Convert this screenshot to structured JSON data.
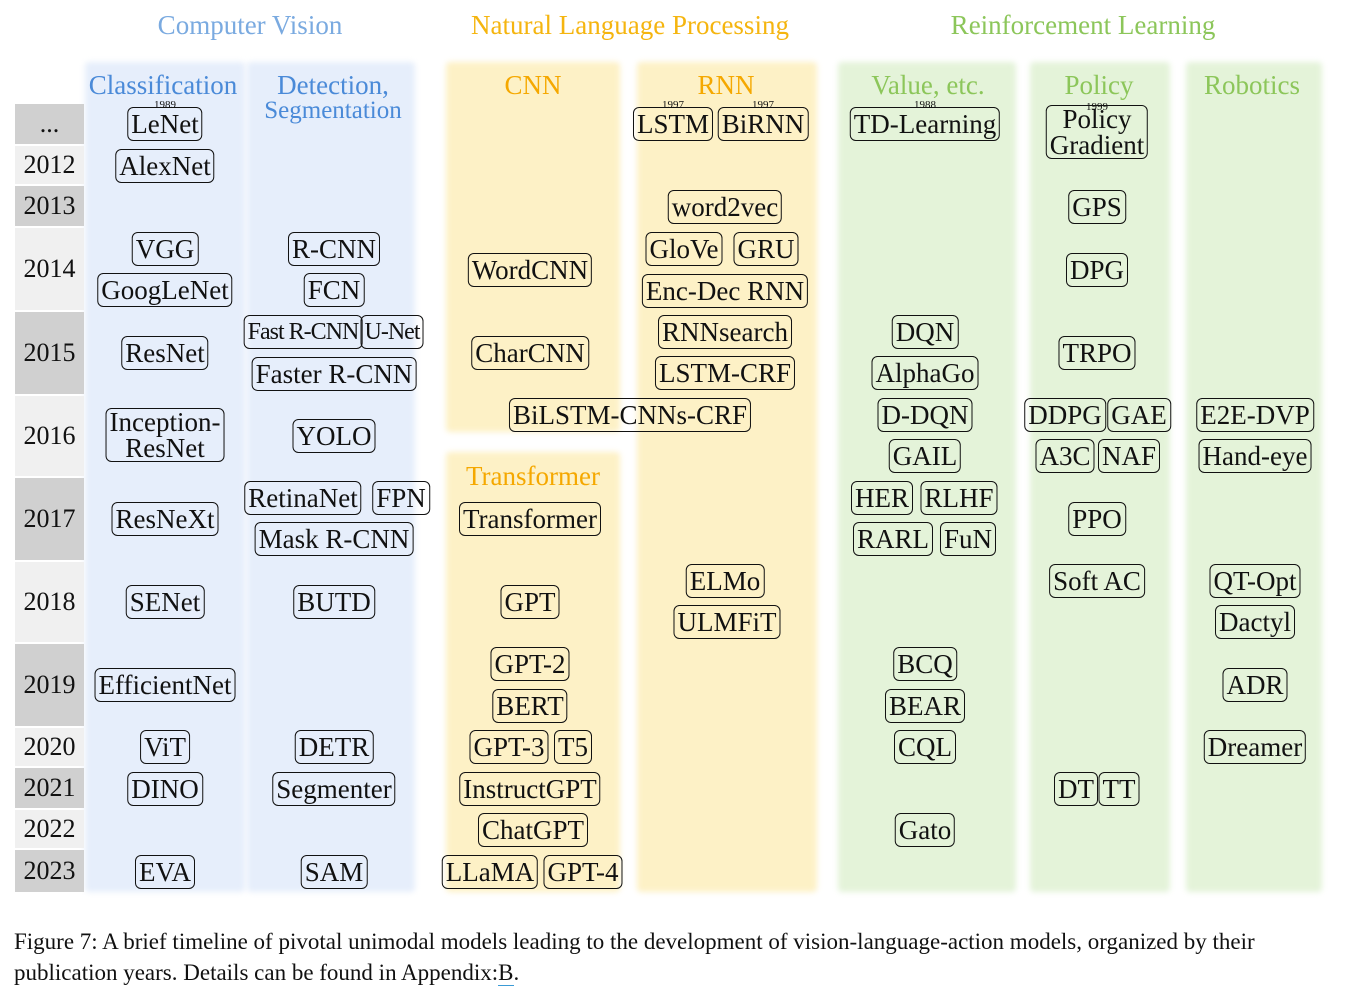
{
  "groups": {
    "cv": {
      "title": "Computer Vision",
      "color": "#7aaae0"
    },
    "nlp": {
      "title": "Natural Language Processing",
      "color": "#f5b50f"
    },
    "rl": {
      "title": "Reinforcement Learning",
      "color": "#8cc65a"
    }
  },
  "columns": {
    "classification": "Classification",
    "detection_1": "Detection,",
    "detection_2": "Segmentation",
    "cnn": "CNN",
    "rnn": "RNN",
    "transformer": "Transformer",
    "value": "Value, etc.",
    "policy": "Policy",
    "robotics": "Robotics"
  },
  "years": [
    "...",
    "2012",
    "2013",
    "2014",
    "2015",
    "2016",
    "2017",
    "2018",
    "2019",
    "2020",
    "2021",
    "2022",
    "2023"
  ],
  "models": {
    "lenet": "LeNet",
    "lenet_year": "1989",
    "alexnet": "AlexNet",
    "vgg": "VGG",
    "googlenet": "GoogLeNet",
    "resnet": "ResNet",
    "inception_1": "Inception-",
    "inception_2": "ResNet",
    "resnext": "ResNeXt",
    "senet": "SENet",
    "efficientnet": "EfficientNet",
    "vit": "ViT",
    "dino": "DINO",
    "eva": "EVA",
    "rcnn": "R-CNN",
    "fcn": "FCN",
    "fast_rcnn": "Fast R-CNN",
    "unet": "U-Net",
    "faster_rcnn": "Faster R-CNN",
    "yolo": "YOLO",
    "retinanet": "RetinaNet",
    "fpn": "FPN",
    "mask_rcnn": "Mask R-CNN",
    "butd": "BUTD",
    "detr": "DETR",
    "segmenter": "Segmenter",
    "sam": "SAM",
    "wordcnn": "WordCNN",
    "charcnn": "CharCNN",
    "bilstm": "BiLSTM-CNNs-CRF",
    "lstm": "LSTM",
    "lstm_year": "1997",
    "birnn": "BiRNN",
    "birnn_year": "1997",
    "word2vec": "word2vec",
    "glove": "GloVe",
    "gru": "GRU",
    "encdec": "Enc-Dec RNN",
    "rnnsearch": "RNNsearch",
    "lstmcrf": "LSTM-CRF",
    "elmo": "ELMo",
    "ulmfit": "ULMFiT",
    "transformer": "Transformer",
    "gpt": "GPT",
    "gpt2": "GPT-2",
    "bert": "BERT",
    "gpt3": "GPT-3",
    "t5": "T5",
    "instructgpt": "InstructGPT",
    "chatgpt": "ChatGPT",
    "llama": "LLaMA",
    "gpt4": "GPT-4",
    "td": "TD-Learning",
    "td_year": "1988",
    "dqn": "DQN",
    "alphago": "AlphaGo",
    "ddqn": "D-DQN",
    "gail": "GAIL",
    "her": "HER",
    "rlhf": "RLHF",
    "rarl": "RARL",
    "fun": "FuN",
    "bcq": "BCQ",
    "bear": "BEAR",
    "cql": "CQL",
    "gato": "Gato",
    "pg_1": "Policy",
    "pg_2": "Gradient",
    "pg_year": "1999",
    "gps": "GPS",
    "dpg": "DPG",
    "trpo": "TRPO",
    "ddpg": "DDPG",
    "gae": "GAE",
    "a3c": "A3C",
    "naf": "NAF",
    "ppo": "PPO",
    "softac": "Soft AC",
    "dt": "DT",
    "tt": "TT",
    "e2edvp": "E2E-DVP",
    "handeye": "Hand-eye",
    "qtopt": "QT-Opt",
    "dactyl": "Dactyl",
    "adr": "ADR",
    "dreamer": "Dreamer"
  },
  "caption": {
    "text": "Figure 7: A brief timeline of pivotal unimodal models leading to the development of vision-language-action models, organized by their publication years. Details can be found in Appendix:",
    "link": "B",
    "end": "."
  }
}
